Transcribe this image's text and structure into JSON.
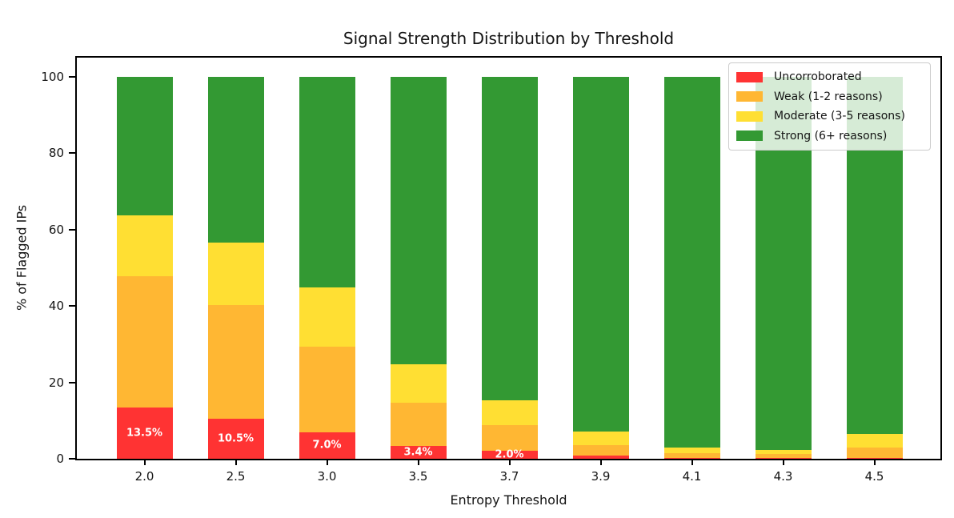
{
  "chart_data": {
    "type": "bar",
    "stacked": true,
    "title": "Signal Strength Distribution by Threshold",
    "xlabel": "Entropy Threshold",
    "ylabel": "% of Flagged IPs",
    "categories": [
      "2.0",
      "2.5",
      "3.0",
      "3.5",
      "3.7",
      "3.9",
      "4.1",
      "4.3",
      "4.5"
    ],
    "series": [
      {
        "name": "Uncorroborated",
        "color": "#ff3333",
        "values": [
          13.5,
          10.5,
          7.0,
          3.4,
          2.0,
          0.8,
          0.3,
          0.2,
          0.3
        ]
      },
      {
        "name": "Weak (1-2 reasons)",
        "color": "#ffb733",
        "values": [
          34.3,
          29.7,
          22.3,
          11.2,
          6.9,
          2.7,
          1.1,
          1.0,
          2.6
        ]
      },
      {
        "name": "Moderate (3-5 reasons)",
        "color": "#ffdf33",
        "values": [
          16.0,
          16.4,
          15.5,
          10.2,
          6.3,
          3.7,
          1.6,
          1.1,
          3.6
        ]
      },
      {
        "name": "Strong (6+ reasons)",
        "color": "#339933",
        "values": [
          36.2,
          43.4,
          55.2,
          75.2,
          84.8,
          92.8,
          97.0,
          97.7,
          93.5
        ]
      }
    ],
    "bar_labels": [
      "13.5%",
      "10.5%",
      "7.0%",
      "3.4%",
      "2.0%",
      "",
      "",
      "",
      ""
    ],
    "y_ticks": [
      0,
      20,
      40,
      60,
      80,
      100
    ],
    "ylim": [
      0,
      105
    ],
    "grid": false,
    "legend_position": "upper right"
  }
}
